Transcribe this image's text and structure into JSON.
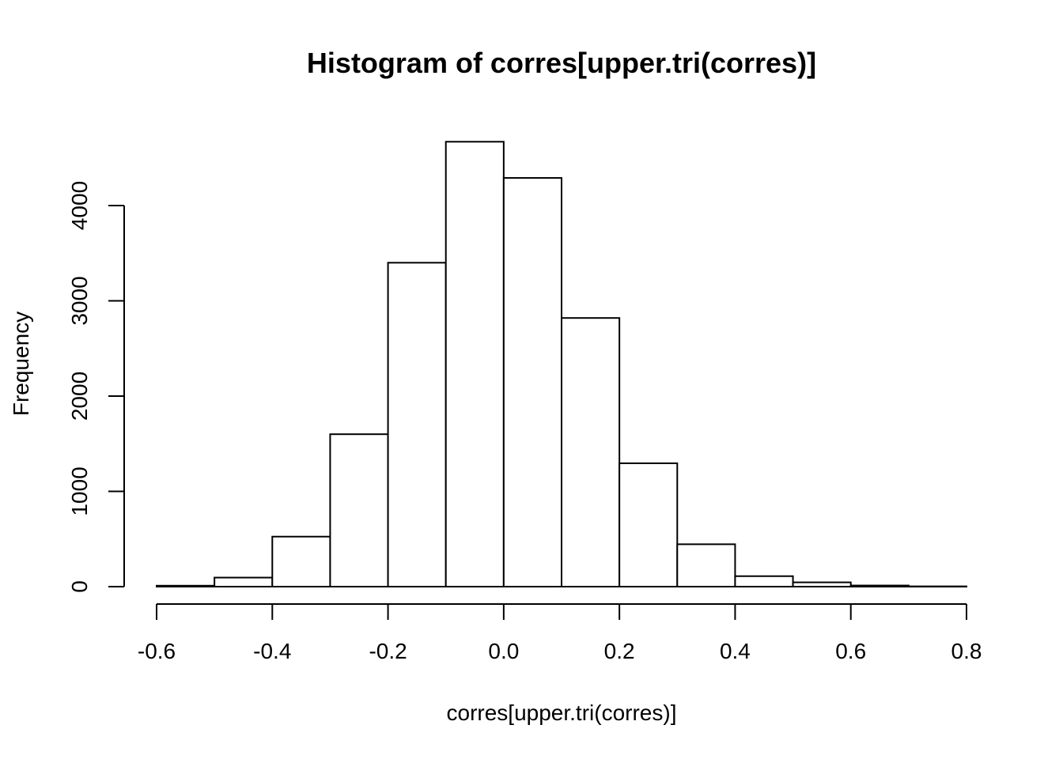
{
  "chart_data": {
    "type": "bar",
    "title": "Histogram of corres[upper.tri(corres)]",
    "xlabel": "corres[upper.tri(corres)]",
    "ylabel": "Frequency",
    "bin_edges": [
      -0.6,
      -0.5,
      -0.4,
      -0.3,
      -0.2,
      -0.1,
      0.0,
      0.1,
      0.2,
      0.3,
      0.4,
      0.5,
      0.6,
      0.7,
      0.8
    ],
    "values": [
      10,
      95,
      525,
      1600,
      3400,
      4670,
      4290,
      2820,
      1295,
      445,
      110,
      45,
      12,
      3
    ],
    "xlim": [
      -0.6,
      0.8
    ],
    "ylim": [
      0,
      4670
    ],
    "x_ticks": [
      -0.6,
      -0.4,
      -0.2,
      0.0,
      0.2,
      0.4,
      0.6,
      0.8
    ],
    "x_tick_labels": [
      "-0.6",
      "-0.4",
      "-0.2",
      "0.0",
      "0.2",
      "0.4",
      "0.6",
      "0.8"
    ],
    "y_ticks": [
      0,
      1000,
      2000,
      3000,
      4000
    ],
    "y_tick_labels": [
      "0",
      "1000",
      "2000",
      "3000",
      "4000"
    ],
    "bar_fill": "#ffffff",
    "bar_stroke": "#000000",
    "grid": false,
    "legend": "none"
  }
}
